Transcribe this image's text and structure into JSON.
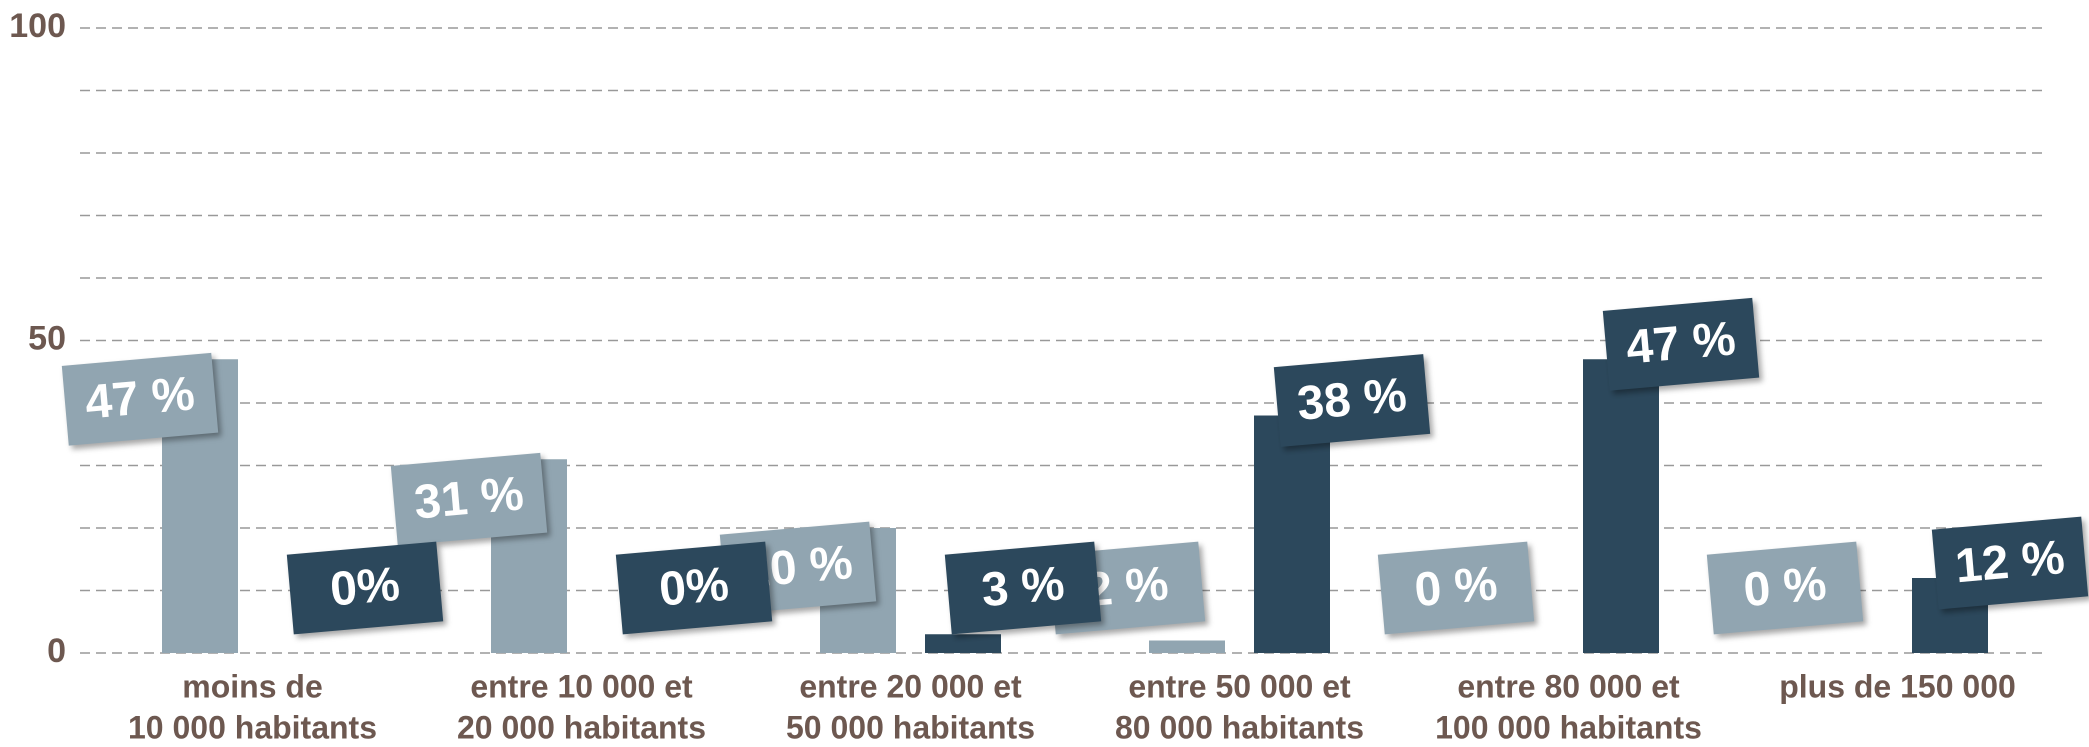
{
  "chart_data": {
    "type": "bar",
    "categories": [
      [
        "moins de",
        "10 000 habitants"
      ],
      [
        "entre 10 000 et",
        "20 000 habitants"
      ],
      [
        "entre 20 000 et",
        "50 000 habitants"
      ],
      [
        "entre 50 000 et",
        "80 000 habitants"
      ],
      [
        "entre 80 000 et",
        "100 000 habitants"
      ],
      [
        "plus de 150 000"
      ]
    ],
    "series": [
      {
        "color": "#91a5b1",
        "values": [
          47,
          31,
          20,
          2,
          0,
          0
        ],
        "value_labels": [
          "47 %",
          "31 %",
          "20 %",
          "2 %",
          "0 %",
          "0 %"
        ]
      },
      {
        "color": "#2c485c",
        "values": [
          0,
          0,
          3,
          38,
          47,
          12
        ],
        "value_labels": [
          "0%",
          "0%",
          "3 %",
          "38 %",
          "47 %",
          "12 %"
        ]
      }
    ],
    "ylim": [
      0,
      100
    ],
    "yticks": [
      0,
      50,
      100
    ],
    "grid_lines": [
      10,
      20,
      30,
      40,
      50,
      60,
      70,
      80,
      90,
      100
    ],
    "grid": true
  }
}
